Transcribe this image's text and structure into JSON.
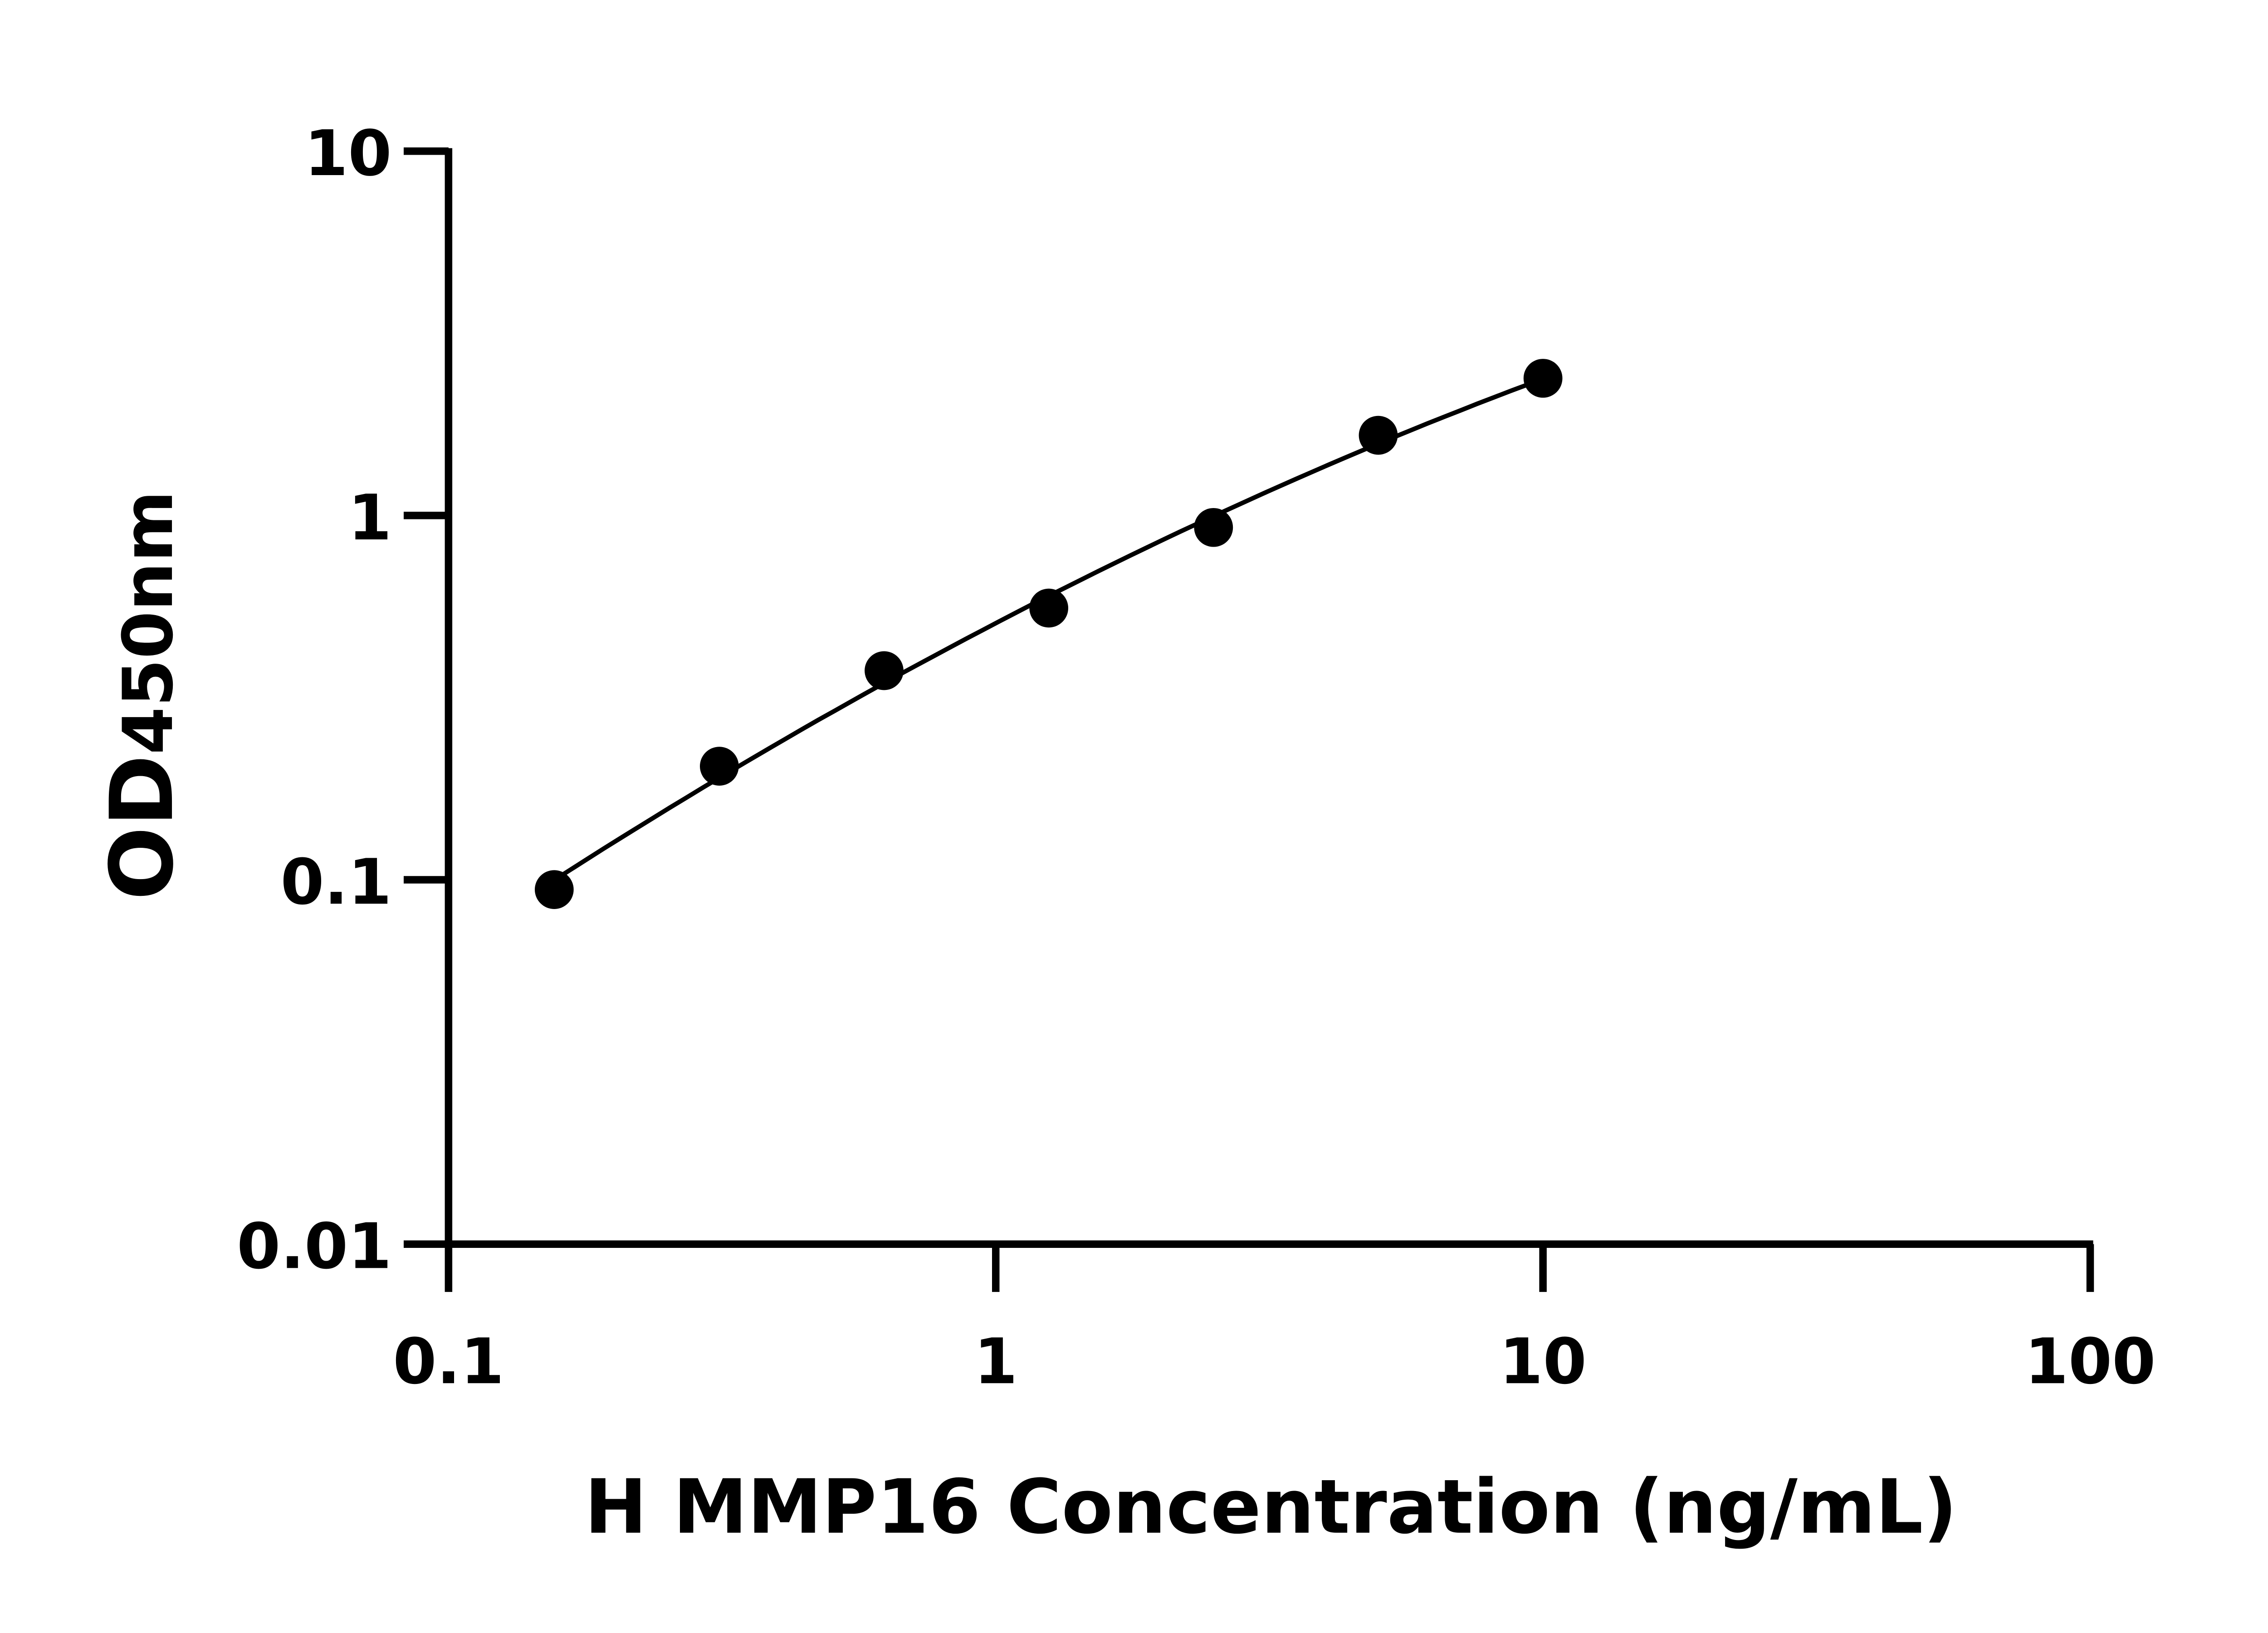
{
  "chart_data": {
    "type": "scatter",
    "title": "",
    "xlabel": "H MMP16 Concentration (ng/mL)",
    "ylabel": "OD",
    "ylabel_sub": "450nm",
    "x_scale": "log",
    "y_scale": "log",
    "xlim": [
      0.1,
      100
    ],
    "ylim": [
      0.01,
      10
    ],
    "x_ticks": [
      0.1,
      1,
      10,
      100
    ],
    "x_tick_labels": [
      "0.1",
      "1",
      "10",
      "100"
    ],
    "y_ticks": [
      0.01,
      0.1,
      1,
      10
    ],
    "y_tick_labels": [
      "0.01",
      "0.1",
      "1",
      "10"
    ],
    "grid": false,
    "legend": "none",
    "fit_curve": true,
    "color": "#000000",
    "series": [
      {
        "x": [
          0.156,
          0.3125,
          0.625,
          1.25,
          2.5,
          5,
          10
        ],
        "y": [
          0.094,
          0.205,
          0.375,
          0.557,
          0.927,
          1.66,
          2.38
        ]
      }
    ]
  }
}
